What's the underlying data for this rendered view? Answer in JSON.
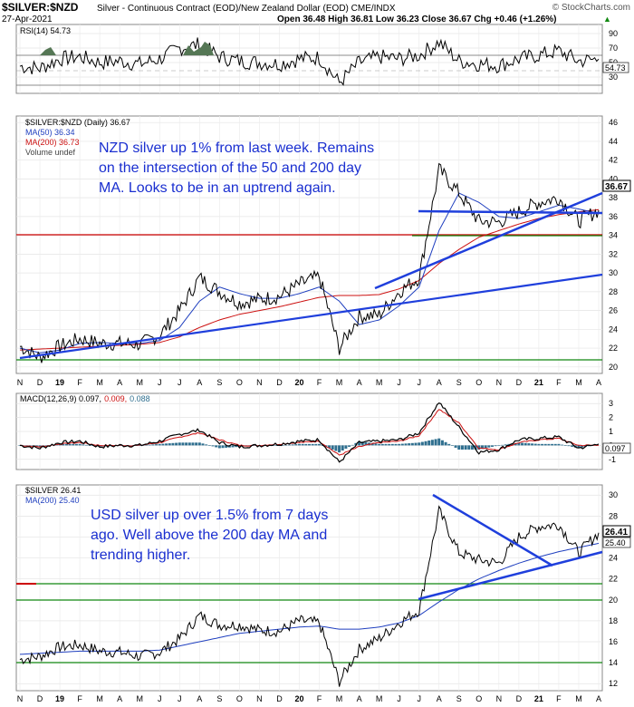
{
  "header": {
    "symbol": "$SILVER:$NZD",
    "description": "Silver - Continuous Contract (EOD)/New Zealand Dollar (EOD) CME/INDX",
    "date": "27-Apr-2021",
    "ohlc": "Open 36.48  High 36.81  Low 36.23  Close 36.67  Chg +0.46 (+1.26%)",
    "copyright": "© StockCharts.com",
    "ohlc_arrow": "▲"
  },
  "time_axis": [
    "N",
    "D",
    "19",
    "F",
    "M",
    "A",
    "M",
    "J",
    "J",
    "A",
    "S",
    "O",
    "N",
    "D",
    "20",
    "F",
    "M",
    "A",
    "M",
    "J",
    "J",
    "A",
    "S",
    "O",
    "N",
    "D",
    "21",
    "F",
    "M",
    "A"
  ],
  "colors": {
    "price": "#000000",
    "ma50": "#1f3fbf",
    "ma200": "#cc1111",
    "trendline": "#1f3fdc",
    "support_red": "#cc0000",
    "support_green": "#118811",
    "rsi_fill": "#557755",
    "macd_hist": "#2f6f8f",
    "annotation": "#1a2fd0"
  },
  "panels": {
    "rsi": {
      "label": "RSI(14) 54.73",
      "ticks": [
        "90",
        "70",
        "50",
        "30"
      ],
      "last": "54.73"
    },
    "nzd": {
      "legend": [
        "$SILVER:$NZD (Daily) 36.67",
        "MA(50) 36.34",
        "MA(200) 36.73",
        "Volume undef"
      ],
      "ticks": [
        "46",
        "44",
        "42",
        "40",
        "38",
        "36",
        "34",
        "32",
        "30",
        "28",
        "26",
        "24",
        "22",
        "20"
      ],
      "last": "36.67",
      "annotation": [
        "NZD silver up 1% from last week. Remains",
        "on the intersection of the 50 and 200 day",
        "MA. Looks to be in an uptrend again."
      ]
    },
    "macd": {
      "label_prefix": "MACD(12,26,9) ",
      "label_macd": "0.097,",
      "label_signal": "0.009,",
      "label_hist": "0.088",
      "ticks": [
        "3",
        "2",
        "1",
        "0",
        "-1"
      ],
      "last": "0.097"
    },
    "usd": {
      "legend": [
        "$SILVER 26.41",
        "MA(200) 25.40"
      ],
      "ticks": [
        "30",
        "28",
        "26",
        "24",
        "22",
        "20",
        "18",
        "16",
        "14",
        "12"
      ],
      "last": "26.41",
      "last_ma": "25.40",
      "annotation": [
        "USD silver up over 1.5% from 7 days",
        "ago. Well above the 200 day MA and",
        "trending higher."
      ]
    }
  },
  "chart_data": [
    {
      "type": "line",
      "title": "RSI(14) 54.73",
      "ylim": [
        10,
        100
      ],
      "x": [
        "N",
        "D",
        "19",
        "F",
        "M",
        "A",
        "M",
        "J",
        "J",
        "A",
        "S",
        "O",
        "N",
        "D",
        "20",
        "F",
        "M",
        "A",
        "M",
        "J",
        "J",
        "A",
        "S",
        "O",
        "N",
        "D",
        "21",
        "F",
        "M",
        "A"
      ],
      "series": [
        {
          "name": "RSI(14)",
          "values": [
            45,
            42,
            55,
            58,
            50,
            52,
            48,
            55,
            70,
            75,
            58,
            52,
            50,
            48,
            55,
            57,
            22,
            50,
            58,
            55,
            60,
            78,
            52,
            48,
            46,
            55,
            60,
            66,
            52,
            54.73
          ]
        }
      ],
      "reference_lines": [
        30,
        70
      ]
    },
    {
      "type": "line",
      "title": "$SILVER:$NZD (Daily) 36.67",
      "ylim": [
        19.5,
        46.5
      ],
      "x": [
        "N",
        "D",
        "19",
        "F",
        "M",
        "A",
        "M",
        "J",
        "J",
        "A",
        "S",
        "O",
        "N",
        "D",
        "20",
        "F",
        "M",
        "A",
        "M",
        "J",
        "J",
        "A",
        "S",
        "O",
        "N",
        "D",
        "21",
        "F",
        "M",
        "A"
      ],
      "series": [
        {
          "name": "$SILVER:$NZD",
          "values": [
            22.2,
            21.0,
            22.2,
            23.0,
            22.5,
            22.5,
            22.4,
            23.4,
            26.0,
            29.5,
            28.0,
            26.8,
            27.2,
            27.5,
            28.8,
            29.6,
            22.0,
            25.4,
            25.5,
            28.0,
            29.5,
            41.0,
            38.5,
            35.5,
            35.4,
            36.5,
            37.5,
            38.0,
            35.5,
            36.67
          ]
        },
        {
          "name": "MA(50)",
          "values": [
            22.0,
            21.5,
            21.8,
            22.5,
            22.6,
            22.5,
            22.5,
            22.8,
            24.2,
            27.0,
            28.5,
            27.8,
            27.3,
            27.3,
            27.8,
            28.5,
            27.0,
            24.5,
            25.0,
            26.5,
            28.5,
            34.5,
            38.5,
            37.5,
            36.0,
            35.8,
            36.5,
            37.2,
            36.8,
            36.34
          ]
        },
        {
          "name": "MA(200)",
          "values": [
            21.8,
            21.9,
            22.0,
            22.1,
            22.2,
            22.3,
            22.4,
            22.6,
            23.2,
            24.2,
            25.0,
            25.6,
            26.0,
            26.4,
            26.9,
            27.4,
            27.6,
            27.6,
            27.7,
            28.3,
            29.2,
            31.0,
            32.5,
            33.8,
            34.5,
            35.2,
            35.8,
            36.2,
            36.5,
            36.73
          ]
        }
      ],
      "horizontal_lines": [
        20.2,
        31.0,
        33.5
      ]
    },
    {
      "type": "line",
      "title": "MACD(12,26,9)",
      "ylim": [
        -1.6,
        3.6
      ],
      "x": [
        "N",
        "D",
        "19",
        "F",
        "M",
        "A",
        "M",
        "J",
        "J",
        "A",
        "S",
        "O",
        "N",
        "D",
        "20",
        "F",
        "M",
        "A",
        "M",
        "J",
        "J",
        "A",
        "S",
        "O",
        "N",
        "D",
        "21",
        "F",
        "M",
        "A"
      ],
      "series": [
        {
          "name": "MACD",
          "values": [
            0.0,
            -0.2,
            0.2,
            0.3,
            -0.1,
            0.0,
            0.0,
            0.3,
            0.8,
            1.1,
            0.2,
            -0.1,
            0.0,
            0.1,
            0.3,
            0.4,
            -1.2,
            0.2,
            0.3,
            0.4,
            0.9,
            3.1,
            1.3,
            -0.5,
            -0.3,
            0.4,
            0.5,
            0.6,
            -0.2,
            0.097
          ]
        },
        {
          "name": "Signal",
          "values": [
            0.0,
            -0.1,
            0.1,
            0.2,
            0.0,
            0.0,
            0.0,
            0.2,
            0.6,
            0.9,
            0.4,
            0.0,
            0.0,
            0.1,
            0.2,
            0.3,
            -0.7,
            -0.1,
            0.2,
            0.3,
            0.7,
            2.6,
            1.6,
            -0.2,
            -0.3,
            0.2,
            0.4,
            0.5,
            0.0,
            0.009
          ]
        }
      ]
    },
    {
      "type": "line",
      "title": "$SILVER 26.41",
      "ylim": [
        11.5,
        30.8
      ],
      "x": [
        "N",
        "D",
        "19",
        "F",
        "M",
        "A",
        "M",
        "J",
        "J",
        "A",
        "S",
        "O",
        "N",
        "D",
        "20",
        "F",
        "M",
        "A",
        "M",
        "J",
        "J",
        "A",
        "S",
        "O",
        "N",
        "D",
        "21",
        "F",
        "M",
        "A"
      ],
      "series": [
        {
          "name": "$SILVER",
          "values": [
            14.3,
            14.6,
            15.5,
            15.7,
            15.1,
            15.0,
            14.6,
            15.0,
            16.3,
            18.5,
            17.6,
            17.6,
            17.1,
            17.0,
            18.0,
            17.8,
            12.2,
            15.3,
            16.3,
            17.8,
            19.0,
            28.5,
            24.5,
            23.8,
            23.5,
            26.0,
            27.0,
            27.2,
            24.5,
            26.41
          ]
        },
        {
          "name": "MA(200)",
          "values": [
            14.8,
            14.9,
            15.0,
            15.1,
            15.1,
            15.1,
            15.1,
            15.2,
            15.6,
            16.0,
            16.4,
            16.8,
            17.0,
            17.2,
            17.4,
            17.5,
            17.2,
            17.2,
            17.4,
            17.8,
            18.5,
            19.8,
            21.0,
            22.0,
            22.8,
            23.5,
            24.1,
            24.6,
            25.0,
            25.4
          ]
        }
      ],
      "horizontal_lines": [
        14.1,
        20.0,
        21.4
      ]
    }
  ]
}
